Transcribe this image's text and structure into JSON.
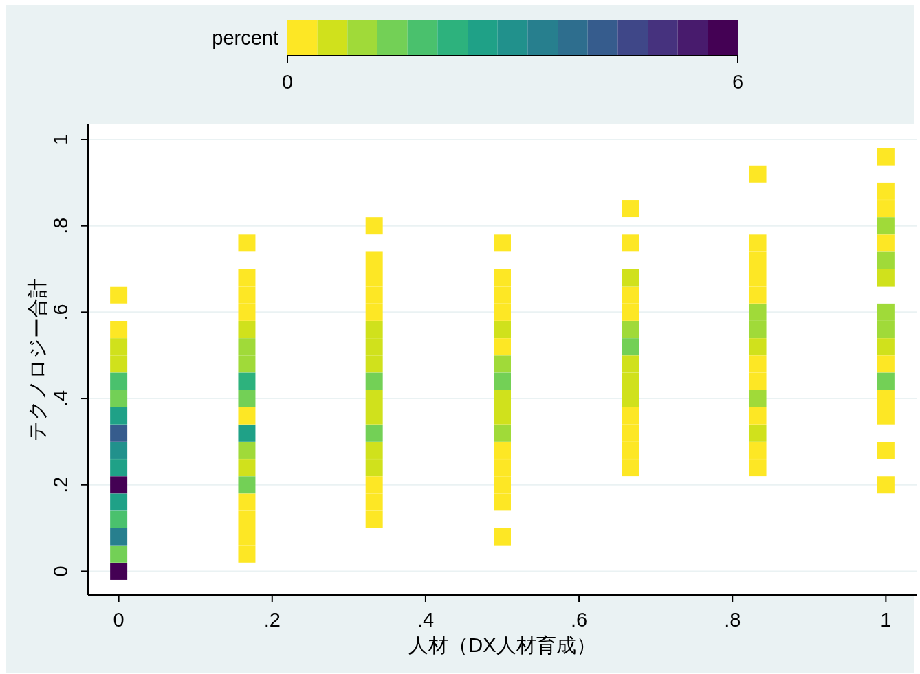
{
  "chart_data": {
    "type": "scatter",
    "marker": "square",
    "xlabel": "人材（DX人材育成）",
    "ylabel": "テクノロジー合計",
    "clabel": "percent",
    "clim": [
      0,
      6
    ],
    "cticks": [
      0,
      6
    ],
    "grid": "y",
    "xlim": [
      -0.04,
      1.04
    ],
    "xticks": [
      0,
      {
        "value": 0.2,
        "label": ".2"
      },
      {
        "value": 0.4,
        "label": ".4"
      },
      {
        "value": 0.6,
        "label": ".6"
      },
      {
        "value": 0.8,
        "label": ".8"
      },
      1
    ],
    "ylim": [
      -0.055,
      1.035
    ],
    "yticks": [
      0,
      {
        "value": 0.2,
        "label": ".2"
      },
      {
        "value": 0.4,
        "label": ".4"
      },
      {
        "value": 0.6,
        "label": ".6"
      },
      {
        "value": 0.8,
        "label": ".8"
      },
      1
    ],
    "x": [
      0,
      0,
      0,
      0,
      0,
      0,
      0,
      0,
      0,
      0,
      0,
      0,
      0,
      0,
      0,
      0,
      0.167,
      0.167,
      0.167,
      0.167,
      0.167,
      0.167,
      0.167,
      0.167,
      0.167,
      0.167,
      0.167,
      0.167,
      0.167,
      0.167,
      0.167,
      0.167,
      0.167,
      0.167,
      0.333,
      0.333,
      0.333,
      0.333,
      0.333,
      0.333,
      0.333,
      0.333,
      0.333,
      0.333,
      0.333,
      0.333,
      0.333,
      0.333,
      0.333,
      0.333,
      0.333,
      0.5,
      0.5,
      0.5,
      0.5,
      0.5,
      0.5,
      0.5,
      0.5,
      0.5,
      0.5,
      0.5,
      0.5,
      0.5,
      0.5,
      0.5,
      0.5,
      0.667,
      0.667,
      0.667,
      0.667,
      0.667,
      0.667,
      0.667,
      0.667,
      0.667,
      0.667,
      0.667,
      0.667,
      0.667,
      0.667,
      0.833,
      0.833,
      0.833,
      0.833,
      0.833,
      0.833,
      0.833,
      0.833,
      0.833,
      0.833,
      0.833,
      0.833,
      0.833,
      0.833,
      0.833,
      1,
      1,
      1,
      1,
      1,
      1,
      1,
      1,
      1,
      1,
      1,
      1,
      1,
      1,
      1,
      1
    ],
    "values": [
      0,
      0.04,
      0.08,
      0.12,
      0.16,
      0.2,
      0.24,
      0.28,
      0.32,
      0.36,
      0.4,
      0.44,
      0.48,
      0.52,
      0.56,
      0.64,
      0.04,
      0.08,
      0.12,
      0.16,
      0.2,
      0.24,
      0.28,
      0.32,
      0.36,
      0.4,
      0.44,
      0.48,
      0.52,
      0.56,
      0.6,
      0.64,
      0.68,
      0.76,
      0.12,
      0.16,
      0.2,
      0.24,
      0.28,
      0.32,
      0.36,
      0.4,
      0.44,
      0.48,
      0.52,
      0.56,
      0.6,
      0.64,
      0.68,
      0.72,
      0.8,
      0.08,
      0.16,
      0.2,
      0.24,
      0.28,
      0.32,
      0.36,
      0.4,
      0.44,
      0.48,
      0.52,
      0.56,
      0.6,
      0.64,
      0.68,
      0.76,
      0.24,
      0.28,
      0.32,
      0.36,
      0.4,
      0.44,
      0.48,
      0.52,
      0.56,
      0.6,
      0.64,
      0.68,
      0.76,
      0.84,
      0.24,
      0.28,
      0.32,
      0.36,
      0.4,
      0.44,
      0.48,
      0.52,
      0.56,
      0.6,
      0.64,
      0.68,
      0.72,
      0.76,
      0.92,
      0.2,
      0.28,
      0.36,
      0.4,
      0.44,
      0.48,
      0.52,
      0.56,
      0.6,
      0.68,
      0.72,
      0.76,
      0.8,
      0.84,
      0.88,
      0.96
    ],
    "cvalues": [
      5.8,
      1.4,
      3.4,
      1.8,
      2.6,
      5.8,
      2.6,
      3,
      4.2,
      2.6,
      1.4,
      1.8,
      0.6,
      0.6,
      0.2,
      0.2,
      0.2,
      0.2,
      0.2,
      0.2,
      1.4,
      0.6,
      1,
      2.6,
      0.2,
      1.4,
      2.2,
      1,
      1,
      0.6,
      0.2,
      0.2,
      0.2,
      0.2,
      0.2,
      0.2,
      0.2,
      0.6,
      0.6,
      1.4,
      0.6,
      0.6,
      1.4,
      0.6,
      0.6,
      0.6,
      0.2,
      0.2,
      0.2,
      0.2,
      0.2,
      0.2,
      0.2,
      0.2,
      0.2,
      0.2,
      1,
      0.6,
      0.6,
      1.4,
      1,
      0.2,
      0.6,
      0.2,
      0.2,
      0.2,
      0.2,
      0.2,
      0.2,
      0.2,
      0.2,
      0.6,
      0.6,
      0.6,
      1.4,
      1,
      0.2,
      0.2,
      0.6,
      0.2,
      0.2,
      0.2,
      0.2,
      0.6,
      0.2,
      1,
      0.2,
      0.2,
      0.6,
      1,
      1,
      0.2,
      0.2,
      0.2,
      0.2,
      0.2,
      0.2,
      0.2,
      0.2,
      0.2,
      1.4,
      0.2,
      0.6,
      1,
      1,
      0.6,
      1,
      0.2,
      1,
      0.2,
      0.2,
      0.2
    ]
  }
}
